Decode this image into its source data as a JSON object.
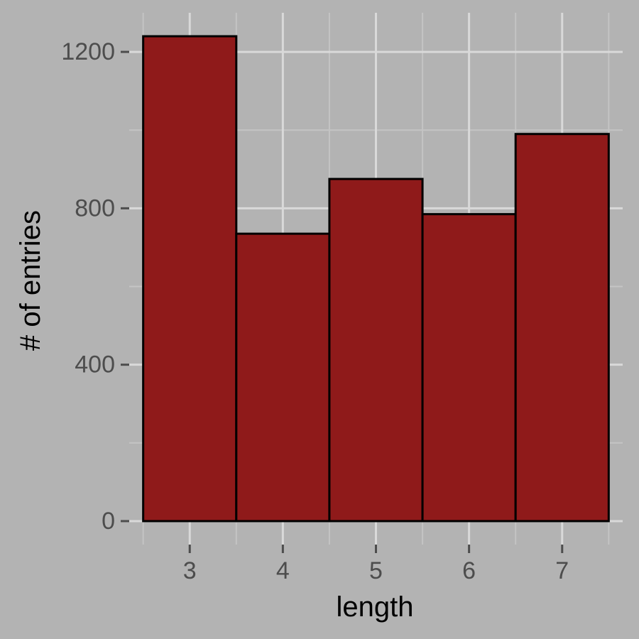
{
  "chart_data": {
    "type": "bar",
    "categories": [
      "3",
      "4",
      "5",
      "6",
      "7"
    ],
    "x": [
      3,
      4,
      5,
      6,
      7
    ],
    "values": [
      1240,
      735,
      875,
      785,
      990
    ],
    "xlabel": "length",
    "ylabel": "# of entries",
    "xticks": [
      "3",
      "4",
      "5",
      "6",
      "7"
    ],
    "yticks": [
      "0",
      "400",
      "800",
      "1200"
    ],
    "ytick_values": [
      0,
      400,
      800,
      1200
    ],
    "ylim": [
      -60,
      1300
    ],
    "xlim": [
      2.35,
      7.65
    ],
    "grid": true,
    "legend": "none",
    "colors": {
      "background": "#b3b3b3",
      "bar_fill": "#8f1a1a",
      "bar_outline": "#000000",
      "grid_major": "#d9d9d9",
      "grid_minor": "#c4c4c4",
      "tick_text": "#4d4d4d",
      "axis_title": "#000000"
    }
  }
}
